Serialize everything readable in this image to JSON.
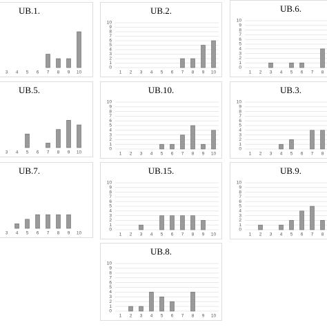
{
  "chart_data": [
    {
      "type": "bar",
      "title": "UB.1.",
      "categories": [
        "3",
        "4",
        "5",
        "6",
        "7",
        "8",
        "9",
        "10"
      ],
      "values": [
        0,
        0,
        0,
        0,
        3,
        2,
        2,
        8
      ],
      "ylim": [
        0,
        10
      ],
      "color": "#9a9a9a"
    },
    {
      "type": "bar",
      "title": "UB.2.",
      "categories": [
        "1",
        "2",
        "3",
        "4",
        "5",
        "6",
        "7",
        "8",
        "9",
        "10"
      ],
      "values": [
        0,
        0,
        0,
        0,
        0,
        0,
        2,
        2,
        5,
        6
      ],
      "ylim": [
        0,
        10
      ],
      "yticks": [
        0,
        1,
        2,
        3,
        4,
        5,
        6,
        7,
        8,
        9,
        10
      ],
      "color": "#9a9a9a"
    },
    {
      "type": "bar",
      "title": "UB.6.",
      "categories": [
        "1",
        "2",
        "3",
        "4",
        "5",
        "6",
        "7",
        "8"
      ],
      "values": [
        0,
        0,
        1,
        0,
        1,
        1,
        0,
        4
      ],
      "ylim": [
        0,
        10
      ],
      "yticks": [
        0,
        1,
        2,
        3,
        4,
        5,
        6,
        7,
        8,
        9,
        10
      ],
      "color": "#9a9a9a"
    },
    {
      "type": "bar",
      "title": "UB.5.",
      "categories": [
        "3",
        "4",
        "5",
        "6",
        "7",
        "8",
        "9",
        "10"
      ],
      "values": [
        0,
        0,
        3,
        0,
        1,
        4,
        6,
        5
      ],
      "ylim": [
        0,
        10
      ],
      "color": "#9a9a9a"
    },
    {
      "type": "bar",
      "title": "UB.10.",
      "categories": [
        "1",
        "2",
        "3",
        "4",
        "5",
        "6",
        "7",
        "8",
        "9",
        "10"
      ],
      "values": [
        0,
        0,
        0,
        0,
        1,
        1,
        3,
        5,
        1,
        4
      ],
      "ylim": [
        0,
        10
      ],
      "yticks": [
        0,
        1,
        2,
        3,
        4,
        5,
        6,
        7,
        8,
        9,
        10
      ],
      "color": "#9a9a9a"
    },
    {
      "type": "bar",
      "title": "UB.3.",
      "categories": [
        "1",
        "2",
        "3",
        "4",
        "5",
        "6",
        "7",
        "8"
      ],
      "values": [
        0,
        0,
        0,
        1,
        2,
        0,
        4,
        4
      ],
      "ylim": [
        0,
        10
      ],
      "yticks": [
        0,
        1,
        2,
        3,
        4,
        5,
        6,
        7,
        8,
        9,
        10
      ],
      "color": "#9a9a9a"
    },
    {
      "type": "bar",
      "title": "UB.7.",
      "categories": [
        "3",
        "4",
        "5",
        "6",
        "7",
        "8",
        "9",
        "10"
      ],
      "values": [
        0,
        1,
        2,
        3,
        3,
        3,
        3,
        0
      ],
      "ylim": [
        0,
        10
      ],
      "color": "#9a9a9a"
    },
    {
      "type": "bar",
      "title": "UB.15.",
      "categories": [
        "1",
        "2",
        "3",
        "4",
        "5",
        "6",
        "7",
        "8",
        "9",
        "10"
      ],
      "values": [
        0,
        0,
        1,
        0,
        3,
        3,
        3,
        3,
        2,
        0
      ],
      "ylim": [
        0,
        10
      ],
      "yticks": [
        0,
        1,
        2,
        3,
        4,
        5,
        6,
        7,
        8,
        9,
        10
      ],
      "color": "#9a9a9a"
    },
    {
      "type": "bar",
      "title": "UB.9.",
      "categories": [
        "1",
        "2",
        "3",
        "4",
        "5",
        "6",
        "7",
        "8"
      ],
      "values": [
        0,
        1,
        0,
        1,
        2,
        4,
        5,
        2
      ],
      "ylim": [
        0,
        10
      ],
      "yticks": [
        0,
        1,
        2,
        3,
        4,
        5,
        6,
        7,
        8,
        9,
        10
      ],
      "color": "#9a9a9a"
    },
    {
      "type": "bar",
      "title": "UB.8.",
      "categories": [
        "1",
        "2",
        "3",
        "4",
        "5",
        "6",
        "7",
        "8",
        "9",
        "10"
      ],
      "values": [
        0,
        1,
        1,
        4,
        3,
        2,
        0,
        4,
        0,
        0
      ],
      "ylim": [
        0,
        10
      ],
      "yticks": [
        0,
        1,
        2,
        3,
        4,
        5,
        6,
        7,
        8,
        9,
        10
      ],
      "color": "#9a9a9a"
    }
  ]
}
